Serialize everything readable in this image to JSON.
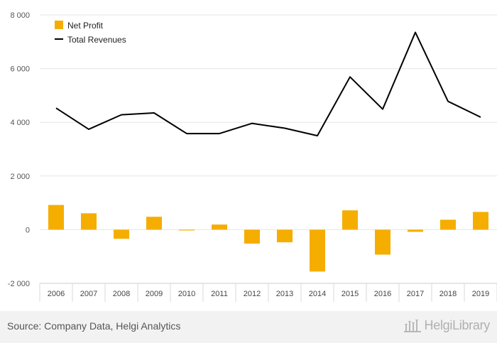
{
  "chart_data": {
    "type": "bar",
    "categories": [
      "2006",
      "2007",
      "2008",
      "2009",
      "2010",
      "2011",
      "2012",
      "2013",
      "2014",
      "2015",
      "2016",
      "2017",
      "2018",
      "2019"
    ],
    "series": [
      {
        "name": "Net Profit",
        "type": "bar",
        "color": "#f5ad00",
        "values": [
          920,
          610,
          -340,
          480,
          -30,
          190,
          -520,
          -470,
          -1560,
          720,
          -930,
          -80,
          370,
          660
        ]
      },
      {
        "name": "Total Revenues",
        "type": "line",
        "color": "#000000",
        "values": [
          4530,
          3740,
          4280,
          4350,
          3580,
          3580,
          3960,
          3780,
          3500,
          5690,
          4490,
          7350,
          4780,
          4190
        ]
      }
    ],
    "ylim": [
      -2000,
      8000
    ],
    "yticks": [
      -2000,
      0,
      2000,
      4000,
      6000,
      8000
    ],
    "ytick_labels": [
      "-2 000",
      "0",
      "2 000",
      "4 000",
      "6 000",
      "8 000"
    ],
    "grid": true,
    "legend_position": "top-left",
    "xlabel": "",
    "ylabel": "",
    "title": ""
  },
  "footer": {
    "source": "Source: Company Data, Helgi Analytics",
    "logo_text": "HelgiLibrary"
  },
  "colors": {
    "bar": "#f5ad00",
    "line": "#000000",
    "grid": "#e6e6e6",
    "axis_text": "#555555"
  }
}
